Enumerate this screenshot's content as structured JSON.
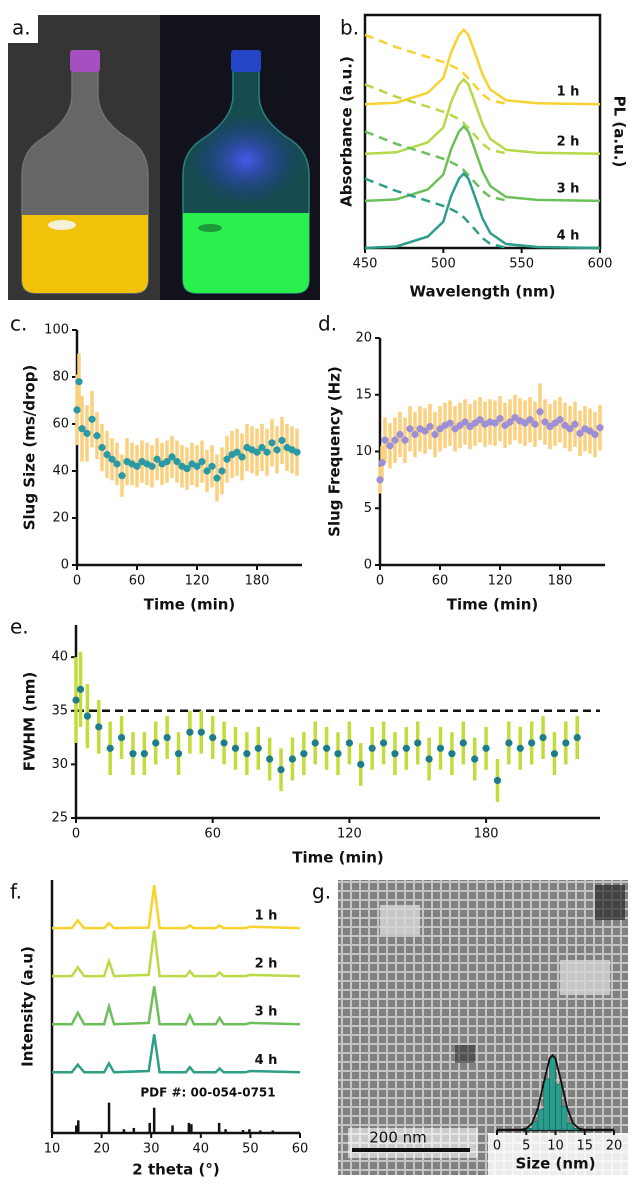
{
  "chart_data": [
    {
      "type": "image",
      "panel_label": "a."
    },
    {
      "type": "line",
      "panel_label": "b.",
      "xlabel": "Wavelength (nm)",
      "ylabel": "Absorbance (a.u.)",
      "right_label": "PL (a.u.)",
      "xlim": [
        450,
        600
      ],
      "xticks": [
        450,
        500,
        550,
        600
      ],
      "ylim": [
        0,
        4.7
      ],
      "x": [
        450,
        470,
        490,
        500,
        505,
        510,
        513,
        516,
        520,
        525,
        530,
        540,
        560,
        600
      ],
      "series": [
        {
          "name": "1 h",
          "color": "#f6d232",
          "values": [
            2.9,
            2.93,
            3.13,
            3.43,
            3.95,
            4.3,
            4.4,
            4.3,
            3.95,
            3.5,
            3.2,
            2.98,
            2.92,
            2.9
          ],
          "absorbance": [
            4.3,
            4.05,
            3.85,
            3.75,
            3.68,
            3.6,
            3.52,
            3.42,
            3.28,
            3.1,
            2.98,
            2.91,
            null,
            null
          ]
        },
        {
          "name": "2 h",
          "color": "#b6d949",
          "values": [
            1.9,
            1.93,
            2.13,
            2.43,
            2.95,
            3.3,
            3.4,
            3.3,
            2.95,
            2.5,
            2.2,
            1.98,
            1.92,
            1.9
          ],
          "absorbance": [
            3.3,
            3.05,
            2.85,
            2.75,
            2.68,
            2.6,
            2.52,
            2.42,
            2.28,
            2.1,
            1.98,
            1.91,
            null,
            null
          ]
        },
        {
          "name": "3 h",
          "color": "#6cc05a",
          "values": [
            0.95,
            0.98,
            1.18,
            1.48,
            2,
            2.35,
            2.45,
            2.35,
            2,
            1.55,
            1.25,
            1.03,
            0.97,
            0.95
          ],
          "absorbance": [
            2.35,
            2.1,
            1.9,
            1.8,
            1.73,
            1.65,
            1.57,
            1.47,
            1.33,
            1.15,
            1.03,
            0.96,
            null,
            null
          ]
        },
        {
          "name": "4 h",
          "color": "#2e9e8a",
          "values": [
            0,
            0.03,
            0.23,
            0.53,
            1.05,
            1.4,
            1.5,
            1.4,
            1.05,
            0.6,
            0.3,
            0.08,
            0.02,
            0
          ],
          "absorbance": [
            1.4,
            1.15,
            0.95,
            0.85,
            0.78,
            0.7,
            0.62,
            0.52,
            0.38,
            0.2,
            0.08,
            0.01,
            null,
            null
          ]
        }
      ]
    },
    {
      "type": "scatter",
      "panel_label": "c.",
      "xlabel": "Time (min)",
      "ylabel": "Slug Size (ms/drop)",
      "xlim": [
        0,
        225
      ],
      "xticks": [
        0,
        60,
        120,
        180
      ],
      "ylim": [
        0,
        100
      ],
      "yticks": [
        0,
        20,
        40,
        60,
        80,
        100
      ],
      "color": "#2a9aa6",
      "error_color": "#fbd07e",
      "x": [
        0,
        2,
        5,
        10,
        15,
        20,
        25,
        30,
        35,
        40,
        45,
        50,
        55,
        60,
        65,
        70,
        75,
        80,
        85,
        90,
        95,
        100,
        105,
        110,
        115,
        120,
        125,
        130,
        135,
        140,
        145,
        150,
        155,
        160,
        165,
        170,
        175,
        180,
        185,
        190,
        195,
        200,
        205,
        210,
        215,
        220
      ],
      "values": [
        66,
        78,
        58,
        56,
        62,
        55,
        50,
        47,
        45,
        43,
        38,
        44,
        43,
        42,
        44,
        43,
        42,
        45,
        43,
        44,
        46,
        44,
        42,
        41,
        43,
        42,
        44,
        40,
        42,
        37,
        40,
        45,
        47,
        48,
        46,
        50,
        49,
        48,
        50,
        48,
        52,
        49,
        53,
        50,
        49,
        48
      ],
      "errors": [
        15,
        12,
        14,
        12,
        12,
        10,
        10,
        10,
        9,
        9,
        9,
        10,
        9,
        9,
        9,
        9,
        9,
        9,
        9,
        9,
        9,
        9,
        9,
        9,
        9,
        9,
        9,
        9,
        9,
        10,
        10,
        10,
        10,
        10,
        10,
        10,
        10,
        10,
        10,
        10,
        10,
        10,
        10,
        10,
        10,
        10
      ]
    },
    {
      "type": "scatter",
      "panel_label": "d.",
      "xlabel": "Time (min)",
      "ylabel": "Slug Frequency (Hz)",
      "xlim": [
        0,
        225
      ],
      "xticks": [
        0,
        60,
        120,
        180
      ],
      "ylim": [
        0,
        20
      ],
      "yticks": [
        0,
        5,
        10,
        15,
        20
      ],
      "color": "#9b8fd6",
      "error_color": "#fbd07e",
      "x": [
        0,
        2,
        5,
        10,
        15,
        20,
        25,
        30,
        35,
        40,
        45,
        50,
        55,
        60,
        65,
        70,
        75,
        80,
        85,
        90,
        95,
        100,
        105,
        110,
        115,
        120,
        125,
        130,
        135,
        140,
        145,
        150,
        155,
        160,
        165,
        170,
        175,
        180,
        185,
        190,
        195,
        200,
        205,
        210,
        215,
        220
      ],
      "values": [
        7.5,
        9,
        11,
        10.5,
        11,
        11.5,
        11,
        12,
        11.5,
        12,
        11.8,
        12.2,
        11.5,
        12,
        12.3,
        12.5,
        12,
        12.3,
        12.6,
        12.2,
        12.5,
        12.8,
        12.4,
        12.6,
        12.5,
        12.9,
        12.3,
        12.6,
        13,
        12.7,
        12.5,
        12.8,
        12.4,
        13.5,
        12.6,
        12.2,
        12.5,
        12.8,
        12.3,
        12,
        12.4,
        11.6,
        12,
        11.8,
        11.5,
        12.1
      ],
      "errors": [
        1.2,
        1.5,
        2,
        2,
        2,
        2,
        2,
        2,
        2,
        2,
        2,
        2,
        2,
        2,
        2,
        2,
        2,
        2,
        2,
        2,
        2,
        2,
        2,
        2,
        2,
        2,
        2,
        2,
        2,
        2,
        2,
        2,
        2,
        2.5,
        2,
        2,
        2,
        2,
        2,
        2,
        2,
        2,
        2,
        2,
        2,
        2
      ]
    },
    {
      "type": "scatter",
      "panel_label": "e.",
      "xlabel": "Time (min)",
      "ylabel": "FWHM (nm)",
      "xlim": [
        0,
        230
      ],
      "xticks": [
        0,
        60,
        120,
        180
      ],
      "ylim": [
        25,
        43
      ],
      "yticks": [
        25,
        30,
        35,
        40
      ],
      "reference_line": 35,
      "color": "#1f7d8a",
      "error_color": "#c3dc3c",
      "x": [
        0,
        2,
        5,
        10,
        15,
        20,
        25,
        30,
        35,
        40,
        45,
        50,
        55,
        60,
        65,
        70,
        75,
        80,
        85,
        90,
        95,
        100,
        105,
        110,
        115,
        120,
        125,
        130,
        135,
        140,
        145,
        150,
        155,
        160,
        165,
        170,
        175,
        180,
        185,
        190,
        195,
        200,
        205,
        210,
        215,
        220
      ],
      "values": [
        36,
        37,
        34.5,
        33.5,
        31.5,
        32.5,
        31,
        31,
        32,
        32.5,
        31,
        33,
        33,
        32.5,
        32,
        31.5,
        31,
        31.5,
        30.5,
        29.5,
        30.5,
        31,
        32,
        31.5,
        31,
        32,
        30,
        31.5,
        32,
        31,
        31.5,
        32,
        30.5,
        31.5,
        31,
        32,
        30.5,
        31.5,
        28.5,
        32,
        31.5,
        32,
        32.5,
        31,
        32,
        32.5
      ],
      "errors": [
        4,
        3.5,
        3,
        2.5,
        2.5,
        2,
        2,
        2,
        2,
        2,
        2,
        2,
        2,
        2,
        2,
        2,
        2,
        2,
        2,
        2,
        2,
        2,
        2,
        2,
        2,
        2,
        2,
        2,
        2,
        2,
        2,
        2,
        2,
        2,
        2,
        2,
        2,
        2,
        2,
        2,
        2,
        2,
        2,
        2,
        2,
        2
      ]
    },
    {
      "type": "line",
      "panel_label": "f.",
      "xlabel": "2 theta (°)",
      "ylabel": "Intensity (a.u)",
      "xlim": [
        10,
        60
      ],
      "xticks": [
        10,
        20,
        30,
        40,
        50,
        60
      ],
      "ylim": [
        0,
        10
      ],
      "x": [
        10,
        14,
        15.2,
        16.5,
        20.5,
        21.5,
        22.5,
        29.5,
        30.6,
        31.7,
        37,
        37.8,
        38.6,
        43,
        43.8,
        44.6,
        49,
        50,
        60
      ],
      "series": [
        {
          "name": "1 h",
          "color": "#f6d32d",
          "values": [
            8.1,
            8.1,
            8.4,
            8.1,
            8.1,
            8.3,
            8.1,
            8.12,
            9.8,
            8.1,
            8.1,
            8.2,
            8.1,
            8.1,
            8.2,
            8.1,
            8.1,
            8.15,
            8.1
          ]
        },
        {
          "name": "2 h",
          "color": "#b9db45",
          "values": [
            6.2,
            6.2,
            6.55,
            6.2,
            6.2,
            6.8,
            6.2,
            6.25,
            8.0,
            6.2,
            6.2,
            6.4,
            6.2,
            6.2,
            6.35,
            6.2,
            6.2,
            6.25,
            6.2
          ]
        },
        {
          "name": "3 h",
          "color": "#6dbf5a",
          "values": [
            4.3,
            4.3,
            4.75,
            4.3,
            4.3,
            5.0,
            4.3,
            4.35,
            5.8,
            4.3,
            4.3,
            4.65,
            4.3,
            4.3,
            4.55,
            4.3,
            4.3,
            4.35,
            4.3
          ]
        },
        {
          "name": "4 h",
          "color": "#2f9e86",
          "values": [
            2.4,
            2.4,
            2.7,
            2.4,
            2.4,
            2.75,
            2.4,
            2.45,
            3.9,
            2.4,
            2.4,
            2.6,
            2.4,
            2.4,
            2.55,
            2.4,
            2.4,
            2.45,
            2.4
          ]
        }
      ],
      "reference": {
        "label": "PDF #: 00-054-0751",
        "positions": [
          14.9,
          15.3,
          21.5,
          24.5,
          26.5,
          29.7,
          30.6,
          34.3,
          37.6,
          38.1,
          43.7,
          45,
          48.5,
          49.8,
          52,
          54.5
        ],
        "intensities": [
          0.3,
          0.5,
          1.2,
          0.15,
          0.2,
          0.4,
          1.0,
          0.3,
          0.4,
          0.35,
          0.4,
          0.15,
          0.12,
          0.15,
          0.1,
          0.1
        ]
      }
    },
    {
      "type": "histogram",
      "panel_label": "g.",
      "scale_bar": "200 nm",
      "xlabel": "Size (nm)",
      "xlim": [
        0,
        20
      ],
      "xticks": [
        0,
        5,
        10,
        15,
        20
      ],
      "ylim": [
        0,
        50
      ],
      "color": "#2a9d8f",
      "bins": [
        5,
        6,
        7,
        8,
        9,
        10,
        11,
        12,
        13,
        14
      ],
      "counts": [
        1,
        5,
        12,
        30,
        43,
        27,
        14,
        4,
        1
      ],
      "fit": {
        "x": [
          4,
          5,
          6,
          7,
          8,
          9,
          9.5,
          10,
          11,
          12,
          13,
          14,
          15
        ],
        "values": [
          0.1,
          0.8,
          4,
          13,
          28,
          42,
          44,
          42,
          28,
          13,
          4,
          0.8,
          0.1
        ]
      }
    }
  ]
}
